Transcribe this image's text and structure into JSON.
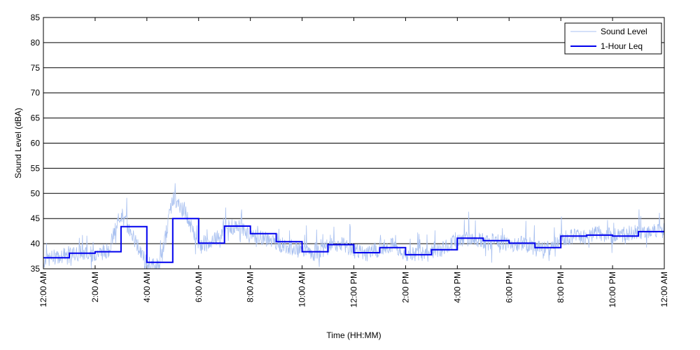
{
  "chart_data": {
    "type": "line",
    "title": "",
    "xlabel": "Time (HH:MM)",
    "ylabel": "Sound Level (dBA)",
    "xlim": [
      0,
      24
    ],
    "ylim": [
      35,
      85
    ],
    "y_ticks": [
      35,
      40,
      45,
      50,
      55,
      60,
      65,
      70,
      75,
      80,
      85
    ],
    "x_ticks": [
      {
        "hour": 0,
        "label": "12:00 AM"
      },
      {
        "hour": 2,
        "label": "2:00 AM"
      },
      {
        "hour": 4,
        "label": "4:00 AM"
      },
      {
        "hour": 6,
        "label": "6:00 AM"
      },
      {
        "hour": 8,
        "label": "8:00 AM"
      },
      {
        "hour": 10,
        "label": "10:00 AM"
      },
      {
        "hour": 12,
        "label": "12:00 PM"
      },
      {
        "hour": 14,
        "label": "2:00 PM"
      },
      {
        "hour": 16,
        "label": "4:00 PM"
      },
      {
        "hour": 18,
        "label": "6:00 PM"
      },
      {
        "hour": 20,
        "label": "8:00 PM"
      },
      {
        "hour": 22,
        "label": "10:00 PM"
      },
      {
        "hour": 24,
        "label": "12:00 AM"
      }
    ],
    "grid": "horizontal",
    "legend_position": "top-right",
    "series": [
      {
        "name": "Sound Level",
        "color": "#a8c0f0",
        "style": "thin-noisy",
        "x": [
          0,
          0.5,
          1,
          1.5,
          2,
          2.5,
          3,
          3.5,
          4,
          4.5,
          5,
          5.5,
          6,
          6.5,
          7,
          7.5,
          8,
          8.5,
          9,
          9.5,
          10,
          10.5,
          11,
          11.5,
          12,
          12.5,
          13,
          13.5,
          14,
          14.5,
          15,
          15.5,
          16,
          16.5,
          17,
          17.5,
          18,
          18.5,
          19,
          19.5,
          20,
          20.5,
          21,
          21.5,
          22,
          22.5,
          23,
          23.5,
          24
        ],
        "values": [
          36.5,
          37.5,
          38,
          38,
          38,
          38.5,
          46,
          41,
          36,
          35.5,
          49,
          46,
          39.5,
          40,
          43,
          43.5,
          42,
          41,
          40,
          39.5,
          38.5,
          38,
          39.5,
          40,
          38.5,
          38,
          39,
          40,
          37.5,
          38,
          38.5,
          39,
          41,
          41,
          40.5,
          40.5,
          40,
          40,
          39,
          39,
          41,
          41.5,
          41.5,
          42,
          41.5,
          42,
          42.5,
          42.5,
          42.5
        ]
      },
      {
        "name": "1-Hour Leq",
        "color": "#0000ee",
        "style": "step",
        "hours": [
          0,
          1,
          2,
          3,
          4,
          5,
          6,
          7,
          8,
          9,
          10,
          11,
          12,
          13,
          14,
          15,
          16,
          17,
          18,
          19,
          20,
          21,
          22,
          23
        ],
        "values": [
          37.2,
          38.1,
          38.4,
          43.4,
          36.3,
          45.0,
          40.1,
          43.5,
          42.0,
          40.4,
          38.4,
          39.8,
          38.2,
          39.2,
          37.8,
          38.8,
          41.1,
          40.6,
          40.1,
          39.2,
          41.5,
          41.7,
          41.5,
          42.4
        ]
      }
    ]
  }
}
